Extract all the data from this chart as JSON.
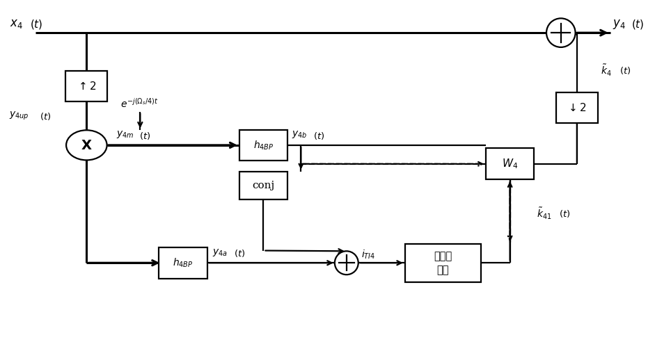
{
  "bg": "#ffffff",
  "fw": 12.4,
  "fh": 6.6,
  "dpi": 100,
  "lw": 1.6,
  "lw_thick": 2.2
}
